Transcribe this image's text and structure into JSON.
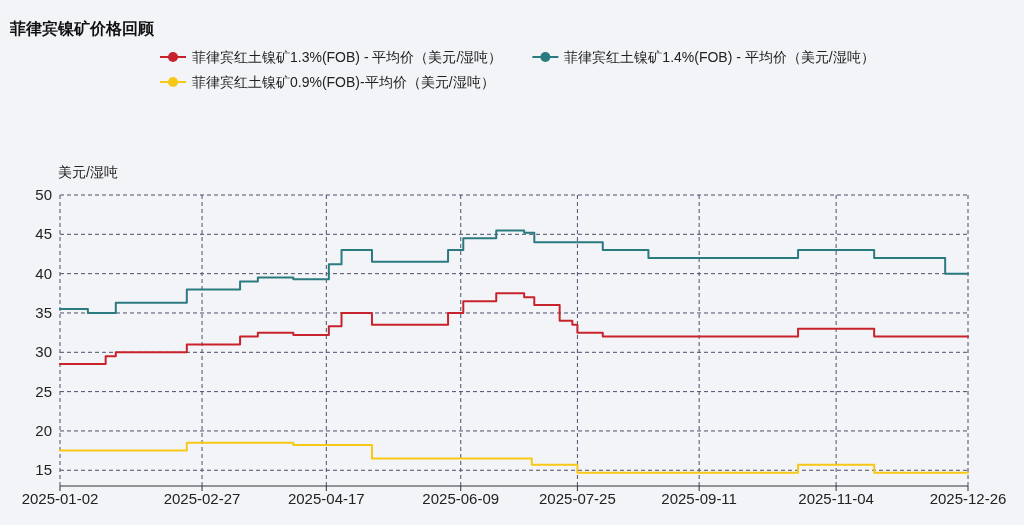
{
  "chart_data": {
    "type": "step",
    "title": "菲律宾镍矿价格回顾",
    "ylabel": "美元/湿吨",
    "legend": "top",
    "grid": true,
    "line_style": "solid",
    "xlim": [
      "2025-01-02",
      "2025-12-26"
    ],
    "xticks": [
      "2025-01-02",
      "2025-02-27",
      "2025-04-17",
      "2025-06-09",
      "2025-07-25",
      "2025-09-11",
      "2025-11-04",
      "2025-12-26"
    ],
    "ylim": [
      13,
      50
    ],
    "yticks": [
      15,
      20,
      25,
      30,
      35,
      40,
      45,
      50
    ],
    "series": [
      {
        "name": "菲律宾红土镍矿1.3%(FOB) - 平均价（美元/湿吨）",
        "color": "#c8232c",
        "x": [
          "2025-01-02",
          "2025-01-20",
          "2025-01-24",
          "2025-02-21",
          "2025-03-14",
          "2025-03-21",
          "2025-04-04",
          "2025-04-18",
          "2025-04-23",
          "2025-05-05",
          "2025-06-04",
          "2025-06-10",
          "2025-06-23",
          "2025-07-04",
          "2025-07-08",
          "2025-07-18",
          "2025-07-23",
          "2025-07-25",
          "2025-08-04",
          "2025-10-20",
          "2025-11-19",
          "2025-12-26"
        ],
        "values": [
          28.5,
          29.5,
          30,
          31,
          32,
          32.5,
          32.2,
          33.3,
          35,
          33.5,
          35,
          36.5,
          37.5,
          37,
          36,
          34,
          33.5,
          32.5,
          32,
          33,
          32,
          32
        ]
      },
      {
        "name": "菲律宾红土镍矿1.4%(FOB) - 平均价（美元/湿吨）",
        "color": "#2b7a80",
        "x": [
          "2025-01-02",
          "2025-01-13",
          "2025-01-24",
          "2025-02-21",
          "2025-03-14",
          "2025-03-21",
          "2025-04-04",
          "2025-04-18",
          "2025-04-23",
          "2025-05-05",
          "2025-06-04",
          "2025-06-10",
          "2025-06-23",
          "2025-07-04",
          "2025-07-08",
          "2025-08-04",
          "2025-08-22",
          "2025-10-20",
          "2025-11-19",
          "2025-12-17",
          "2025-12-26"
        ],
        "values": [
          35.5,
          35,
          36.3,
          38,
          39,
          39.5,
          39.3,
          41.2,
          43,
          41.5,
          43,
          44.5,
          45.5,
          45.2,
          44,
          43,
          42,
          43,
          42,
          40,
          40
        ]
      },
      {
        "name": "菲律宾红土镍矿0.9%(FOB)-平均价（美元/湿吨）",
        "color": "#f7c815",
        "x": [
          "2025-01-02",
          "2025-02-21",
          "2025-04-04",
          "2025-05-05",
          "2025-07-07",
          "2025-07-25",
          "2025-10-20",
          "2025-11-19",
          "2025-12-26"
        ],
        "values": [
          17.5,
          18.5,
          18.2,
          16.5,
          15.7,
          14.7,
          15.7,
          14.7,
          14.7
        ]
      }
    ]
  }
}
